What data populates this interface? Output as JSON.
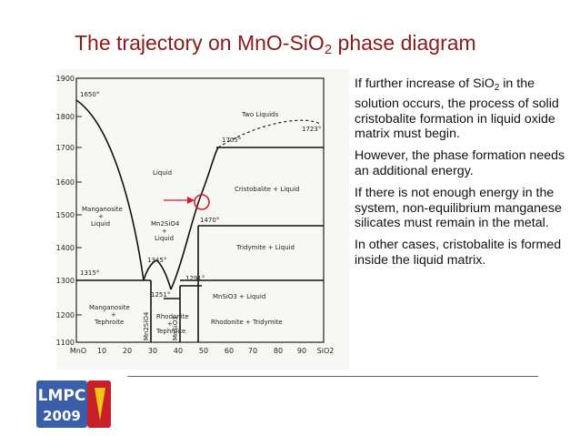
{
  "title": {
    "prefix": "The trajectory on MnO-SiO",
    "sub": "2",
    "suffix": " phase diagram"
  },
  "bullets": [
    {
      "pre": "If further increase of SiO",
      "sub": "2",
      "post": " in the solution occurs, the process of solid cristobalite formation in liquid oxide matrix must begin."
    },
    {
      "pre": "However, the phase formation needs an additional energy.",
      "sub": "",
      "post": ""
    },
    {
      "pre": "If there is not enough energy in the system, non-equilibrium manganese silicates must remain in the metal.",
      "sub": "",
      "post": ""
    },
    {
      "pre": "In other cases, cristobalite is formed inside the liquid matrix.",
      "sub": "",
      "post": ""
    }
  ],
  "diagram": {
    "y_ticks": [
      "1900",
      "1800",
      "1700",
      "1600",
      "1500",
      "1400",
      "1300",
      "1200",
      "1100"
    ],
    "x_ticks": [
      "MnO",
      "10",
      "20",
      "30",
      "40",
      "50",
      "60",
      "70",
      "80",
      "90",
      "SiO2"
    ],
    "labels": {
      "t1650": "1650°",
      "two_liquids": "Two Liquids",
      "t1723": "1723°",
      "t1705": "1705°",
      "liquid": "Liquid",
      "cristobalite_liquid": "Cristobalite + Liquid",
      "manganosite1": "Manganosite",
      "manganosite2": "+",
      "manganosite3": "Liquid",
      "mn2sio4_1": "Mn2SiO4",
      "mn2sio4_2": "+",
      "mn2sio4_3": "Liquid",
      "t1470": "1470°",
      "tridymite_liquid": "Tridymite + Liquid",
      "t1345": "1345°",
      "t1315": "1315°",
      "t1291": "1291°",
      "t1251": "1251°",
      "mnsio3_liquid": "MnSiO3 + Liquid",
      "mang_teph1": "Manganosite",
      "mang_teph2": "+",
      "mang_teph3": "Tephroite",
      "mn2sio4_v": "Mn2SiO4",
      "rhod_teph1": "Rhodonite",
      "rhod_teph2": "+",
      "rhod_teph3": "Tephroite",
      "mnsio3_v": "MnSiO3",
      "rhod_trid": "Rhodonite + Tridymite"
    }
  },
  "logo": {
    "line1": "LMPC",
    "line2": "2009"
  },
  "colors": {
    "title": "#8b1a1a",
    "marker": "#e0162b",
    "logo_blue": "#3a5fa8",
    "logo_red": "#c8202a"
  }
}
